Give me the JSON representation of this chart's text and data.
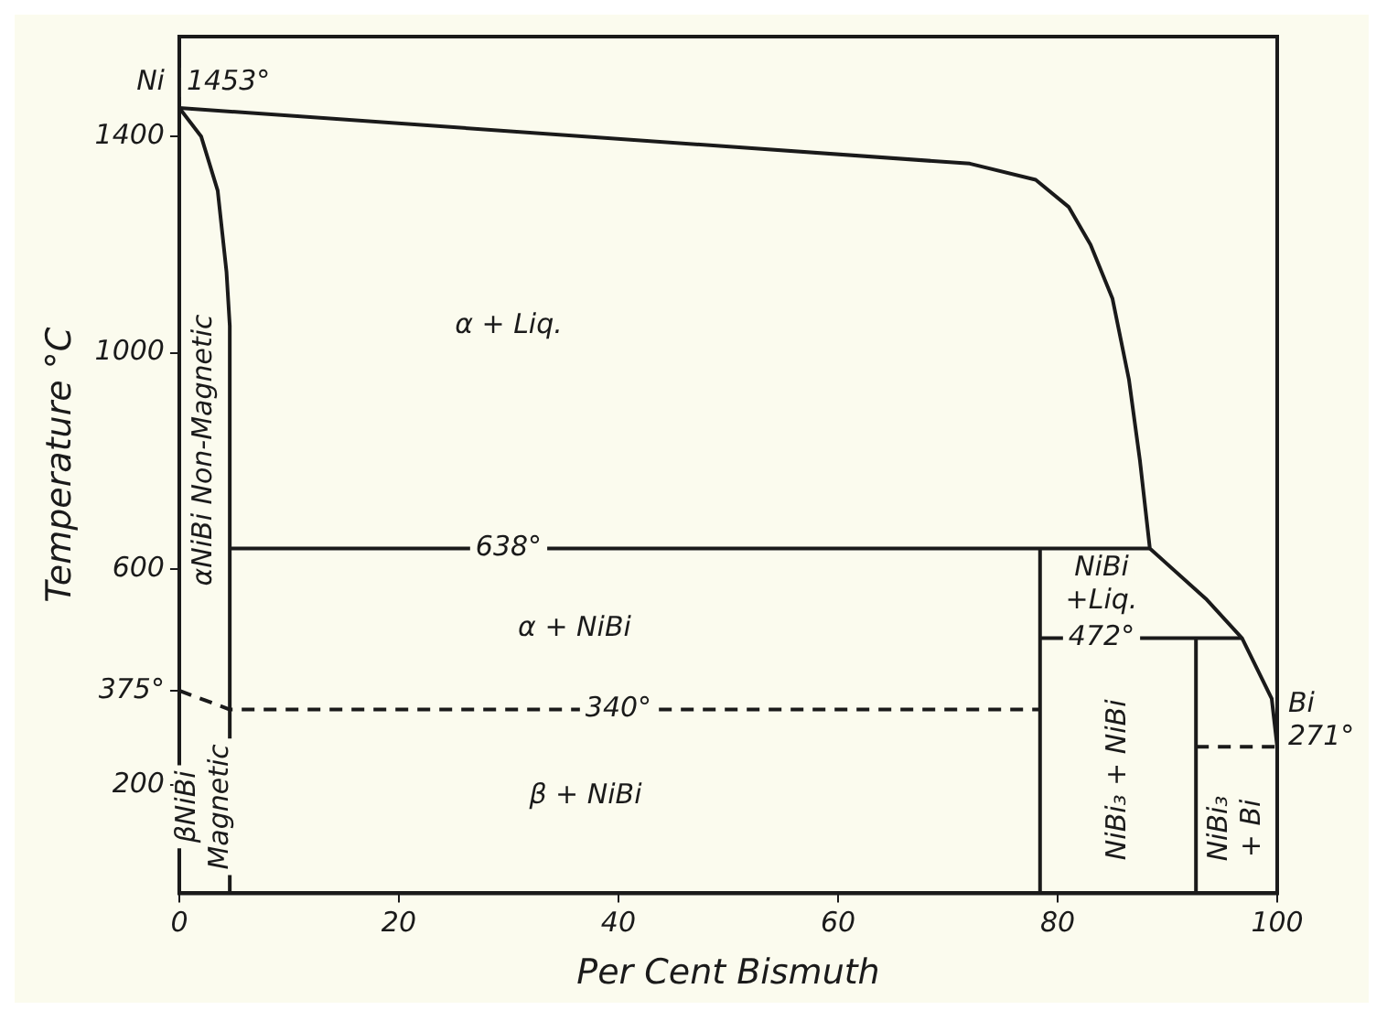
{
  "chart_data": {
    "type": "line",
    "xlabel": "Per Cent Bismuth",
    "ylabel": "Temperature °C",
    "xlim": [
      0,
      100
    ],
    "ylim": [
      0,
      1585
    ],
    "xticks": [
      0,
      20,
      40,
      60,
      80,
      100
    ],
    "yticks": [
      200,
      {
        "value": 375,
        "label": "375°"
      },
      600,
      1000,
      1400
    ],
    "grid": false,
    "legend": false,
    "marker": "none",
    "series": [
      {
        "color": "#1a1a1a",
        "x": [
          0,
          72,
          78,
          81,
          83,
          85,
          86.5,
          87.5,
          88.4,
          93.5,
          96.8,
          99.5,
          100
        ],
        "values": [
          1453,
          1350,
          1320,
          1270,
          1200,
          1100,
          950,
          800,
          638,
          545,
          472,
          360,
          271
        ]
      },
      {
        "color": "#1a1a1a",
        "x": [
          0,
          2,
          3.5,
          4.3,
          4.6,
          4.6
        ],
        "values": [
          1453,
          1400,
          1300,
          1150,
          1050,
          0
        ]
      },
      {
        "color": "#1a1a1a",
        "x": [
          4.6,
          88.4
        ],
        "values": [
          638,
          638
        ]
      },
      {
        "color": "#1a1a1a",
        "x": [
          0,
          4.6,
          78.4
        ],
        "values": [
          375,
          340,
          340
        ],
        "line_style": "dashed"
      },
      {
        "color": "#1a1a1a",
        "x": [
          78.4,
          78.4
        ],
        "values": [
          0,
          638
        ]
      },
      {
        "color": "#1a1a1a",
        "x": [
          78.4,
          96.8
        ],
        "values": [
          472,
          472
        ]
      },
      {
        "color": "#1a1a1a",
        "x": [
          92.6,
          92.6
        ],
        "values": [
          0,
          472
        ]
      },
      {
        "color": "#1a1a1a",
        "x": [
          92.6,
          100
        ],
        "values": [
          271,
          271
        ],
        "line_style": "dashed"
      }
    ],
    "annotations": [
      {
        "text": "Ni",
        "x": 0,
        "y": 1453
      },
      {
        "text": "1453°",
        "x": 0,
        "y": 1453
      },
      "α + Liq.",
      {
        "text": "638°",
        "x": 30,
        "y": 638
      },
      "α + NiBi",
      {
        "text": "340°",
        "x": 40,
        "y": 340
      },
      "β + NiBi",
      "αNiBi Non-Magnetic",
      "βNiBi\nMagnetic",
      "NiBi\n+Liq.",
      {
        "text": "472°",
        "x": 84,
        "y": 472
      },
      "NiBi₃ + NiBi",
      "NiBi₃\n+ Bi",
      {
        "text": "Bi\n271°",
        "x": 100,
        "y": 271
      }
    ]
  }
}
